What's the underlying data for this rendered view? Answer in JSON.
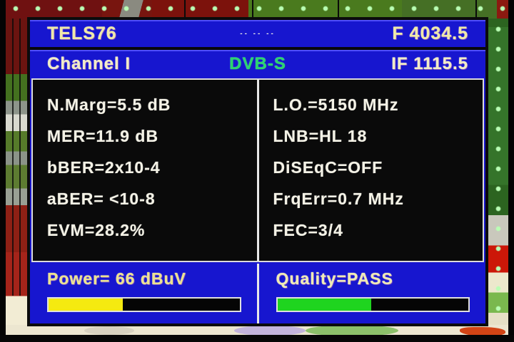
{
  "colors": {
    "osd_blue": "#1716cf",
    "panel_black": "#0a0a0a",
    "text_cream": "#f4f2e6",
    "text_yellow": "#efe9a8",
    "dvb_green": "#2bd56e",
    "power_bar_fill": "#f5ea10",
    "quality_bar_fill": "#1fd41f"
  },
  "header": {
    "title": "TELS76",
    "dashes": "-- -- --",
    "frequency": "F 4034.5"
  },
  "channel_bar": {
    "channel": "Channel I",
    "standard": "DVB-S",
    "if_frequency": "IF 1115.5"
  },
  "measurements": {
    "left": [
      "N.Marg=5.5 dB",
      "MER=11.9 dB",
      "bBER=2x10-4",
      "aBER= <10-8",
      "EVM=28.2%"
    ],
    "right": [
      "L.O.=5150 MHz",
      "LNB=HL 18",
      "DiSEqC=OFF",
      "FrqErr=0.7 MHz",
      "FEC=3/4"
    ]
  },
  "power": {
    "label": "Power= 66 dBuV",
    "bar_percent": 39
  },
  "quality": {
    "label": "Quality=PASS",
    "bar_percent": 49
  }
}
